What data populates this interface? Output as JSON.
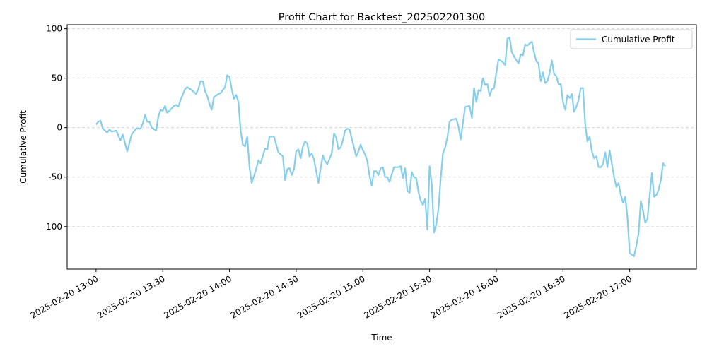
{
  "chart_data": {
    "type": "line",
    "title": "Profit Chart for Backtest_202502201300",
    "xlabel": "Time",
    "ylabel": "Cumulative Profit",
    "legend": "upper right",
    "grid": true,
    "xlim": [
      "2025-02-20 12:47",
      "2025-02-20 17:30"
    ],
    "ylim": [
      -143,
      104
    ],
    "xticks": [
      "2025-02-20 13:00",
      "2025-02-20 13:30",
      "2025-02-20 14:00",
      "2025-02-20 14:30",
      "2025-02-20 15:00",
      "2025-02-20 15:30",
      "2025-02-20 16:00",
      "2025-02-20 16:30",
      "2025-02-20 17:00"
    ],
    "yticks": [
      -100,
      -50,
      0,
      50,
      100
    ],
    "x": [
      "2025-02-20 13:00",
      "2025-02-20 13:01",
      "2025-02-20 13:02",
      "2025-02-20 13:03",
      "2025-02-20 13:05",
      "2025-02-20 13:06",
      "2025-02-20 13:07",
      "2025-02-20 13:09",
      "2025-02-20 13:11",
      "2025-02-20 13:12",
      "2025-02-20 13:14",
      "2025-02-20 13:16",
      "2025-02-20 13:17",
      "2025-02-20 13:18",
      "2025-02-20 13:20",
      "2025-02-20 13:21",
      "2025-02-20 13:22",
      "2025-02-20 13:23",
      "2025-02-20 13:24",
      "2025-02-20 13:25",
      "2025-02-20 13:27",
      "2025-02-20 13:28",
      "2025-02-20 13:29",
      "2025-02-20 13:30",
      "2025-02-20 13:31",
      "2025-02-20 13:32",
      "2025-02-20 13:33",
      "2025-02-20 13:35",
      "2025-02-20 13:36",
      "2025-02-20 13:37",
      "2025-02-20 13:38",
      "2025-02-20 13:40",
      "2025-02-20 13:41",
      "2025-02-20 13:43",
      "2025-02-20 13:45",
      "2025-02-20 13:46",
      "2025-02-20 13:47",
      "2025-02-20 13:48",
      "2025-02-20 13:49",
      "2025-02-20 13:50",
      "2025-02-20 13:51",
      "2025-02-20 13:52",
      "2025-02-20 13:53",
      "2025-02-20 13:55",
      "2025-02-20 13:56",
      "2025-02-20 13:58",
      "2025-02-20 13:59",
      "2025-02-20 14:00",
      "2025-02-20 14:01",
      "2025-02-20 14:02",
      "2025-02-20 14:03",
      "2025-02-20 14:04",
      "2025-02-20 14:05",
      "2025-02-20 14:06",
      "2025-02-20 14:07",
      "2025-02-20 14:08",
      "2025-02-20 14:09",
      "2025-02-20 14:10",
      "2025-02-20 14:12",
      "2025-02-20 14:13",
      "2025-02-20 14:14",
      "2025-02-20 14:16",
      "2025-02-20 14:17",
      "2025-02-20 14:18",
      "2025-02-20 14:20",
      "2025-02-20 14:21",
      "2025-02-20 14:22",
      "2025-02-20 14:24",
      "2025-02-20 14:25",
      "2025-02-20 14:26",
      "2025-02-20 14:27",
      "2025-02-20 14:28",
      "2025-02-20 14:29",
      "2025-02-20 14:30",
      "2025-02-20 14:31",
      "2025-02-20 14:32",
      "2025-02-20 14:33",
      "2025-02-20 14:34",
      "2025-02-20 14:35",
      "2025-02-20 14:36",
      "2025-02-20 14:37",
      "2025-02-20 14:38",
      "2025-02-20 14:39",
      "2025-02-20 14:40",
      "2025-02-20 14:41",
      "2025-02-20 14:42",
      "2025-02-20 14:43",
      "2025-02-20 14:44",
      "2025-02-20 14:46",
      "2025-02-20 14:47",
      "2025-02-20 14:48",
      "2025-02-20 14:49",
      "2025-02-20 14:50",
      "2025-02-20 14:51",
      "2025-02-20 14:52",
      "2025-02-20 14:53",
      "2025-02-20 14:54",
      "2025-02-20 14:55",
      "2025-02-20 14:56",
      "2025-02-20 14:57",
      "2025-02-20 14:58",
      "2025-02-20 14:59",
      "2025-02-20 15:00",
      "2025-02-20 15:01",
      "2025-02-20 15:02",
      "2025-02-20 15:03",
      "2025-02-20 15:04",
      "2025-02-20 15:05",
      "2025-02-20 15:06",
      "2025-02-20 15:07",
      "2025-02-20 15:08",
      "2025-02-20 15:09",
      "2025-02-20 15:10",
      "2025-02-20 15:11",
      "2025-02-20 15:12",
      "2025-02-20 15:13",
      "2025-02-20 15:14",
      "2025-02-20 15:16",
      "2025-02-20 15:17",
      "2025-02-20 15:18",
      "2025-02-20 15:19",
      "2025-02-20 15:20",
      "2025-02-20 15:21",
      "2025-02-20 15:22",
      "2025-02-20 15:23",
      "2025-02-20 15:24",
      "2025-02-20 15:25",
      "2025-02-20 15:26",
      "2025-02-20 15:27",
      "2025-02-20 15:28",
      "2025-02-20 15:29",
      "2025-02-20 15:30",
      "2025-02-20 15:31",
      "2025-02-20 15:32",
      "2025-02-20 15:33",
      "2025-02-20 15:34",
      "2025-02-20 15:35",
      "2025-02-20 15:36",
      "2025-02-20 15:37",
      "2025-02-20 15:38",
      "2025-02-20 15:39",
      "2025-02-20 15:40",
      "2025-02-20 15:42",
      "2025-02-20 15:43",
      "2025-02-20 15:44",
      "2025-02-20 15:45",
      "2025-02-20 15:46",
      "2025-02-20 15:48",
      "2025-02-20 15:49",
      "2025-02-20 15:50",
      "2025-02-20 15:51",
      "2025-02-20 15:52",
      "2025-02-20 15:53",
      "2025-02-20 15:54",
      "2025-02-20 15:55",
      "2025-02-20 15:56",
      "2025-02-20 15:57",
      "2025-02-20 15:58",
      "2025-02-20 15:59",
      "2025-02-20 16:00",
      "2025-02-20 16:01",
      "2025-02-20 16:03",
      "2025-02-20 16:04",
      "2025-02-20 16:05",
      "2025-02-20 16:06",
      "2025-02-20 16:07",
      "2025-02-20 16:09",
      "2025-02-20 16:10",
      "2025-02-20 16:11",
      "2025-02-20 16:12",
      "2025-02-20 16:13",
      "2025-02-20 16:14",
      "2025-02-20 16:15",
      "2025-02-20 16:16",
      "2025-02-20 16:17",
      "2025-02-20 16:18",
      "2025-02-20 16:19",
      "2025-02-20 16:20",
      "2025-02-20 16:21",
      "2025-02-20 16:22",
      "2025-02-20 16:23",
      "2025-02-20 16:24",
      "2025-02-20 16:25",
      "2025-02-20 16:26",
      "2025-02-20 16:27",
      "2025-02-20 16:28",
      "2025-02-20 16:29",
      "2025-02-20 16:30",
      "2025-02-20 16:31",
      "2025-02-20 16:32",
      "2025-02-20 16:33",
      "2025-02-20 16:34",
      "2025-02-20 16:35",
      "2025-02-20 16:36",
      "2025-02-20 16:37",
      "2025-02-20 16:38",
      "2025-02-20 16:39",
      "2025-02-20 16:40",
      "2025-02-20 16:41",
      "2025-02-20 16:42",
      "2025-02-20 16:43",
      "2025-02-20 16:44",
      "2025-02-20 16:45",
      "2025-02-20 16:46",
      "2025-02-20 16:47",
      "2025-02-20 16:48",
      "2025-02-20 16:49",
      "2025-02-20 16:50",
      "2025-02-20 16:51",
      "2025-02-20 16:52",
      "2025-02-20 16:53",
      "2025-02-20 16:54",
      "2025-02-20 16:55",
      "2025-02-20 16:56",
      "2025-02-20 16:57",
      "2025-02-20 16:58",
      "2025-02-20 16:59",
      "2025-02-20 17:00",
      "2025-02-20 17:02",
      "2025-02-20 17:03",
      "2025-02-20 17:04",
      "2025-02-20 17:05",
      "2025-02-20 17:06",
      "2025-02-20 17:07",
      "2025-02-20 17:08",
      "2025-02-20 17:09",
      "2025-02-20 17:10",
      "2025-02-20 17:11",
      "2025-02-20 17:12",
      "2025-02-20 17:13",
      "2025-02-20 17:14",
      "2025-02-20 17:15",
      "2025-02-20 17:16"
    ],
    "series": [
      {
        "name": "Cumulative Profit",
        "color": "#87ceeb",
        "values": [
          3,
          6,
          7,
          -1,
          -5,
          -2,
          -4,
          -3,
          -13,
          -7,
          -24,
          -7,
          -4,
          -1,
          -1,
          4,
          13,
          6,
          6,
          0,
          -3,
          11,
          18,
          17,
          22,
          15,
          17,
          22,
          23,
          21,
          28,
          39,
          41,
          38,
          34,
          39,
          47,
          47,
          37,
          32,
          24,
          18,
          31,
          34,
          35,
          41,
          53,
          51,
          39,
          29,
          33,
          26,
          -3,
          -17,
          -19,
          -9,
          -40,
          -56,
          -42,
          -33,
          -36,
          -21,
          -22,
          -9,
          -9,
          -17,
          -25,
          -29,
          -53,
          -42,
          -41,
          -48,
          -42,
          -24,
          -22,
          -31,
          -19,
          -14,
          -16,
          -29,
          -26,
          -32,
          -44,
          -56,
          -41,
          -28,
          -34,
          -37,
          -26,
          -6,
          -10,
          -22,
          -20,
          -13,
          -3,
          -1,
          -2,
          -11,
          -20,
          -29,
          -24,
          -17,
          -23,
          -27,
          -34,
          -49,
          -59,
          -44,
          -44,
          -48,
          -41,
          -40,
          -50,
          -50,
          -55,
          -47,
          -40,
          -40,
          -39,
          -51,
          -41,
          -64,
          -66,
          -45,
          -50,
          -51,
          -65,
          -74,
          -78,
          -72,
          -103,
          -39,
          -58,
          -106,
          -98,
          -82,
          -52,
          -26,
          -20,
          -10,
          6,
          8,
          9,
          1,
          -12,
          5,
          21,
          22,
          10,
          40,
          26,
          38,
          37,
          50,
          43,
          44,
          32,
          39,
          40,
          55,
          69,
          66,
          63,
          90,
          91,
          76,
          68,
          65,
          74,
          73,
          84,
          83,
          85,
          87,
          76,
          67,
          65,
          47,
          56,
          45,
          47,
          55,
          68,
          54,
          52,
          44,
          44,
          26,
          18,
          33,
          30,
          34,
          16,
          21,
          28,
          40,
          40,
          3,
          -14,
          -9,
          -24,
          -31,
          -29,
          -40,
          -40,
          -37,
          -25,
          -40,
          -23,
          -37,
          -50,
          -60,
          -56,
          -68,
          -76,
          -70,
          -91,
          -127,
          -130,
          -119,
          -107,
          -74,
          -84,
          -96,
          -92,
          -68,
          -46,
          -70,
          -68,
          -63,
          -53,
          -36,
          -39
        ]
      }
    ]
  }
}
